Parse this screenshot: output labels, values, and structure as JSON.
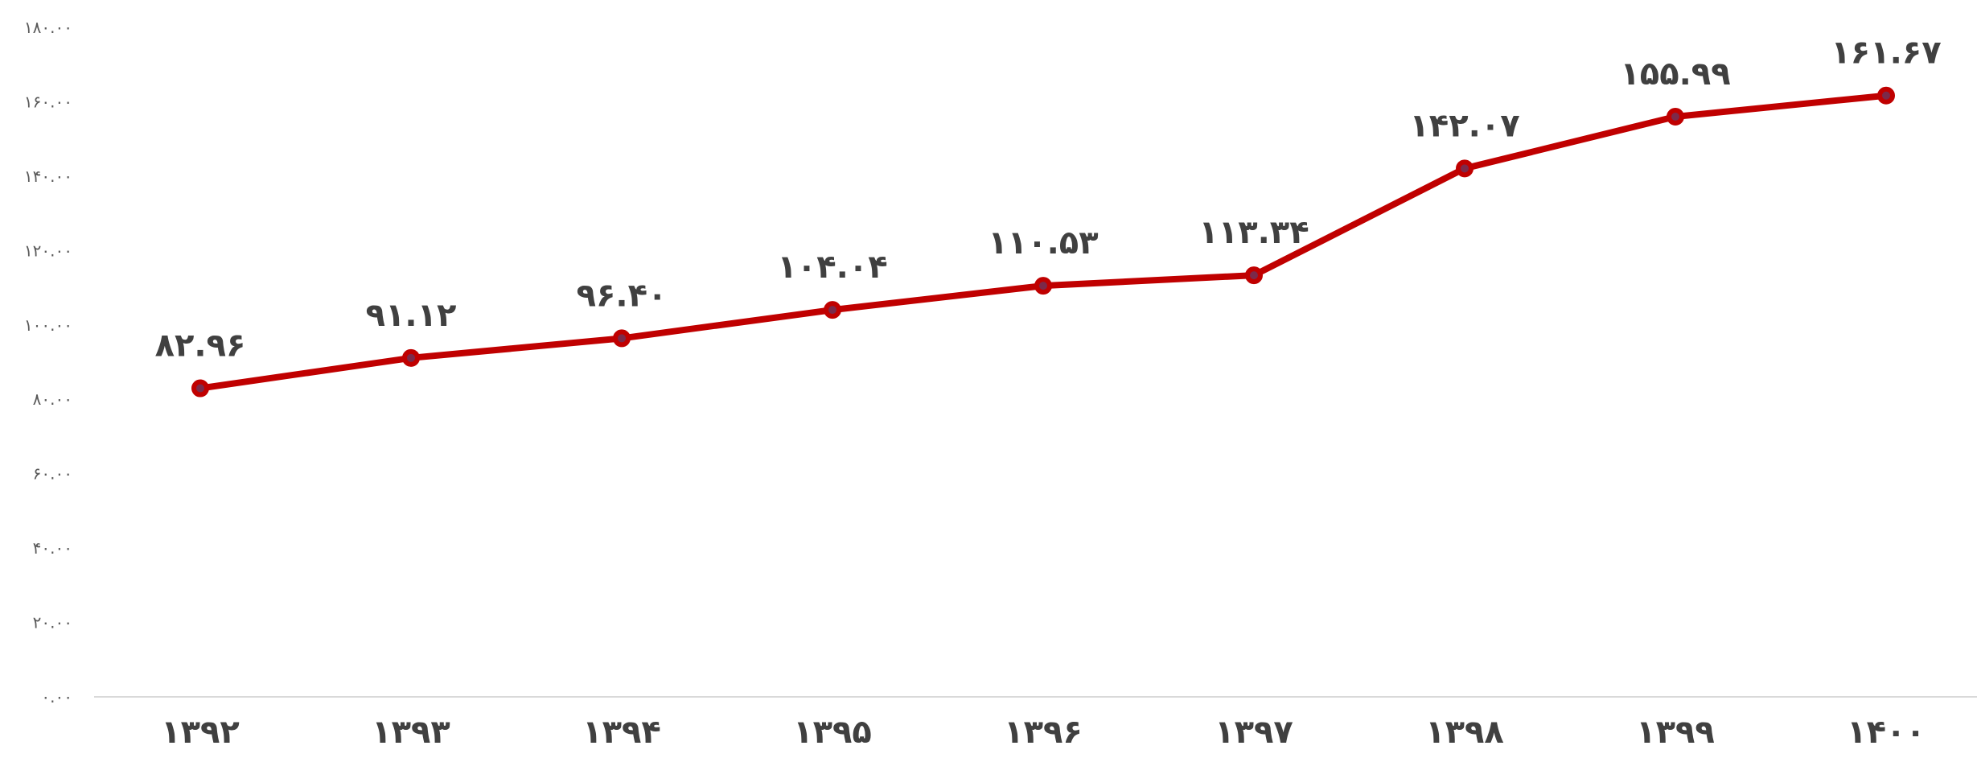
{
  "chart_data": {
    "type": "line",
    "title": "",
    "xlabel": "",
    "ylabel": "",
    "categories": [
      "۱۳۹۲",
      "۱۳۹۳",
      "۱۳۹۴",
      "۱۳۹۵",
      "۱۳۹۶",
      "۱۳۹۷",
      "۱۳۹۸",
      "۱۳۹۹",
      "۱۴۰۰"
    ],
    "series": [
      {
        "values": [
          82.96,
          91.12,
          96.4,
          104.04,
          110.53,
          113.34,
          142.07,
          155.99,
          161.67
        ],
        "color": "#C00000",
        "marker": "circle"
      }
    ],
    "data_labels": [
      "۸۲.۹۶",
      "۹۱.۱۲",
      "۹۶.۴۰",
      "۱۰۴.۰۴",
      "۱۱۰.۵۳",
      "۱۱۳.۳۴",
      "۱۴۲.۰۷",
      "۱۵۵.۹۹",
      "۱۶۱.۶۷"
    ],
    "ylim": [
      0,
      180
    ],
    "y_ticks": [
      0,
      20,
      40,
      60,
      80,
      100,
      120,
      140,
      160,
      180
    ],
    "y_tick_labels": [
      "۰.۰۰",
      "۲۰.۰۰",
      "۴۰.۰۰",
      "۶۰.۰۰",
      "۸۰.۰۰",
      "۱۰۰.۰۰",
      "۱۲۰.۰۰",
      "۱۴۰.۰۰",
      "۱۶۰.۰۰",
      "۱۸۰.۰۰"
    ],
    "grid": false,
    "legend": "none"
  }
}
